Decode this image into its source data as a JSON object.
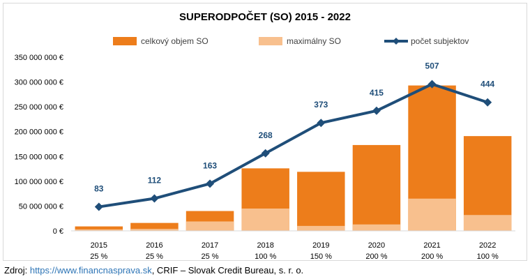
{
  "chart_data": {
    "type": "bar",
    "title": "SUPERODPOČET (SO) 2015 - 2022",
    "categories": [
      "2015",
      "2016",
      "2017",
      "2018",
      "2019",
      "2020",
      "2021",
      "2022"
    ],
    "category_sublabels": [
      "25 %",
      "25 %",
      "25 %",
      "100 %",
      "150 %",
      "200 %",
      "200 %",
      "100 %"
    ],
    "y_ticks": [
      "0 €",
      "50 000 000 €",
      "100 000 000 €",
      "150 000 000 €",
      "200 000 000 €",
      "250 000 000 €",
      "300 000 000 €",
      "350 000 000 €"
    ],
    "ylim": [
      0,
      350000000
    ],
    "grid": false,
    "legend_position": "top",
    "series": [
      {
        "name": "celkový objem SO",
        "type": "bar",
        "color": "#ed7d1b",
        "values": [
          9000000,
          16000000,
          40000000,
          126000000,
          119000000,
          173000000,
          293000000,
          191000000
        ]
      },
      {
        "name": "maximálny SO",
        "type": "bar",
        "color": "#f8c08e",
        "values": [
          3000000,
          4000000,
          19000000,
          45000000,
          10000000,
          13000000,
          65000000,
          32000000
        ]
      },
      {
        "name": "počet subjektov",
        "type": "line",
        "color": "#1f4e79",
        "values": [
          83,
          112,
          163,
          268,
          373,
          415,
          507,
          444
        ],
        "value_labels": [
          "83",
          "112",
          "163",
          "268",
          "373",
          "415",
          "507",
          "444"
        ]
      }
    ]
  },
  "source": {
    "prefix": "Zdroj: ",
    "link": "https://www.financnasprava.sk",
    "suffix": ", CRIF – Slovak Credit Bureau, s. r. o."
  }
}
